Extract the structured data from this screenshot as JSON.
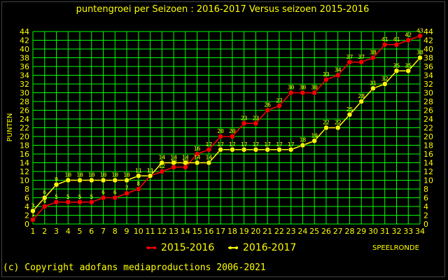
{
  "chart_data": {
    "type": "line",
    "title": "puntengroei per Seizoen : 2016-2017 Versus seizoen 2015-2016",
    "ylabel": "PUNTEN",
    "xlabel": "SPEELRONDE",
    "x": [
      1,
      2,
      3,
      4,
      5,
      6,
      7,
      8,
      9,
      10,
      11,
      12,
      13,
      14,
      15,
      16,
      17,
      18,
      19,
      20,
      21,
      22,
      23,
      24,
      25,
      26,
      27,
      28,
      29,
      30,
      31,
      32,
      33,
      34
    ],
    "ylim": [
      0,
      44
    ],
    "yticks": [
      0,
      2,
      4,
      6,
      8,
      10,
      12,
      14,
      16,
      18,
      20,
      22,
      24,
      26,
      28,
      30,
      32,
      34,
      36,
      38,
      40,
      42,
      44
    ],
    "grid": true,
    "legend_position": "bottom",
    "series": [
      {
        "name": "2015-2016",
        "color": "#ff0000",
        "values": [
          1,
          4,
          5,
          5,
          5,
          5,
          6,
          6,
          7,
          8,
          11,
          12,
          13,
          13,
          16,
          17,
          20,
          20,
          23,
          23,
          26,
          27,
          30,
          30,
          30,
          33,
          34,
          37,
          37,
          38,
          41,
          41,
          42,
          43
        ]
      },
      {
        "name": "2016-2017",
        "color": "#ffff00",
        "values": [
          3,
          6,
          9,
          10,
          10,
          10,
          10,
          10,
          10,
          11,
          11,
          14,
          14,
          14,
          14,
          14,
          17,
          17,
          17,
          17,
          17,
          17,
          17,
          18,
          19,
          22,
          22,
          25,
          28,
          31,
          32,
          35,
          35,
          38
        ]
      }
    ]
  },
  "footer": "(c) Copyright adofans mediaproductions 2006-2021"
}
